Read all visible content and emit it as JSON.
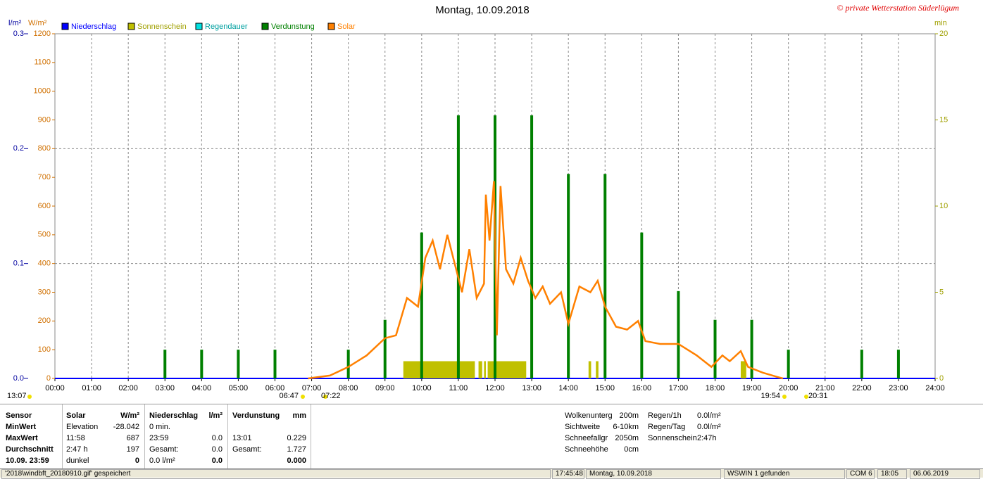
{
  "chart_data": {
    "type": "line",
    "title": "Montag, 10.09.2018",
    "copyright": "© private Wetterstation Süderlügum",
    "axis_labels": {
      "y": "l/m²",
      "y2": "W/m²",
      "y3": "min"
    },
    "xlim": [
      0,
      24
    ],
    "xticks": [
      {
        "value": 0,
        "label": "00:00"
      },
      {
        "value": 1,
        "label": "01:00"
      },
      {
        "value": 2,
        "label": "02:00"
      },
      {
        "value": 3,
        "label": "03:00"
      },
      {
        "value": 4,
        "label": "04:00"
      },
      {
        "value": 5,
        "label": "05:00"
      },
      {
        "value": 6,
        "label": "06:00"
      },
      {
        "value": 7,
        "label": "07:00"
      },
      {
        "value": 8,
        "label": "08:00"
      },
      {
        "value": 9,
        "label": "09:00"
      },
      {
        "value": 10,
        "label": "10:00"
      },
      {
        "value": 11,
        "label": "11:00"
      },
      {
        "value": 12,
        "label": "12:00"
      },
      {
        "value": 13,
        "label": "13:00"
      },
      {
        "value": 14,
        "label": "14:00"
      },
      {
        "value": 15,
        "label": "15:00"
      },
      {
        "value": 16,
        "label": "16:00"
      },
      {
        "value": 17,
        "label": "17:00"
      },
      {
        "value": 18,
        "label": "18:00"
      },
      {
        "value": 19,
        "label": "19:00"
      },
      {
        "value": 20,
        "label": "20:00"
      },
      {
        "value": 21,
        "label": "21:00"
      },
      {
        "value": 22,
        "label": "22:00"
      },
      {
        "value": 23,
        "label": "23:00"
      },
      {
        "value": 24,
        "label": "24:00"
      }
    ],
    "ylim": [
      0,
      0.3
    ],
    "yticks": [
      {
        "value": 0,
        "label": "0.0"
      },
      0.1,
      0.2,
      0.3
    ],
    "y2lim": [
      0,
      1200
    ],
    "y2ticks": [
      0,
      100,
      200,
      300,
      400,
      500,
      600,
      700,
      800,
      900,
      1000,
      1100,
      1200
    ],
    "y3lim": [
      0,
      20
    ],
    "y3ticks": [
      0,
      5,
      10,
      15,
      20
    ],
    "grid": true,
    "series": [
      {
        "name": "Niederschlag",
        "color": "#0000ff",
        "axis": "y",
        "x": [
          0,
          24
        ],
        "values": [
          0,
          0
        ]
      },
      {
        "name": "Sonnenschein",
        "color": "#c0c000",
        "axis": "y3",
        "x_ranges": [
          [
            9.5,
            11.45
          ],
          [
            11.55,
            11.65
          ],
          [
            11.7,
            11.75
          ],
          [
            11.8,
            12.85
          ],
          [
            14.55,
            14.62
          ],
          [
            14.75,
            14.82
          ],
          [
            18.7,
            18.85
          ]
        ],
        "values": [
          1,
          1,
          1,
          1,
          1,
          1,
          1
        ]
      },
      {
        "name": "Regendauer",
        "color": "#00e0e0",
        "axis": "y3"
      },
      {
        "name": "Verdunstung",
        "color": "#008000",
        "axis": "y",
        "x": [
          3,
          4,
          5,
          6,
          8,
          9,
          10,
          11,
          12,
          13,
          14,
          15,
          16,
          17,
          18,
          19,
          20,
          22,
          23
        ],
        "values": [
          0.025,
          0.025,
          0.025,
          0.025,
          0.025,
          0.051,
          0.127,
          0.229,
          0.229,
          0.229,
          0.178,
          0.178,
          0.127,
          0.076,
          0.051,
          0.051,
          0.025,
          0.025,
          0.025
        ]
      },
      {
        "name": "Solar",
        "color": "#ff8000",
        "axis": "y2",
        "x": [
          6.9,
          7.5,
          8,
          8.5,
          9,
          9.3,
          9.6,
          9.9,
          10.1,
          10.3,
          10.5,
          10.7,
          10.9,
          11.1,
          11.3,
          11.5,
          11.7,
          11.75,
          11.85,
          11.97,
          12.05,
          12.15,
          12.3,
          12.5,
          12.7,
          12.9,
          13.1,
          13.3,
          13.5,
          13.8,
          14,
          14.3,
          14.6,
          14.8,
          15,
          15.3,
          15.6,
          15.9,
          16.1,
          16.5,
          17,
          17.5,
          17.9,
          18.2,
          18.4,
          18.7,
          18.9,
          19.3,
          19.7,
          19.85
        ],
        "values": [
          0,
          10,
          40,
          80,
          140,
          150,
          280,
          250,
          420,
          480,
          380,
          500,
          400,
          300,
          450,
          280,
          330,
          640,
          480,
          687,
          150,
          670,
          380,
          330,
          420,
          340,
          280,
          320,
          260,
          300,
          190,
          320,
          300,
          340,
          250,
          180,
          170,
          200,
          130,
          120,
          120,
          80,
          40,
          80,
          60,
          95,
          40,
          20,
          5,
          0
        ]
      }
    ],
    "annotations": [
      "13:07",
      "06:47",
      "07:22",
      "19:54",
      "20:31"
    ]
  },
  "stats": {
    "rows": [
      [
        "Sensor",
        "Solar",
        "W/m²",
        "Niederschlag",
        "l/m²",
        "Verdunstung",
        "mm"
      ],
      [
        "MinWert",
        "Elevation",
        "-28.042",
        "0 min.",
        null,
        null,
        null
      ],
      [
        "MaxWert",
        "11:58",
        "687",
        "23:59",
        "0.0",
        "13:01",
        "0.229"
      ],
      [
        "Durchschnitt",
        "2:47 h",
        "197",
        "Gesamt:",
        "0.0",
        "Gesamt:",
        "1.727"
      ],
      [
        "10.09. 23:59",
        "dunkel",
        "0",
        "0.0 l/m²",
        "0.0",
        null,
        "0.000"
      ]
    ],
    "info": [
      [
        "Wolkenunterg",
        "200m"
      ],
      [
        "Sichtweite",
        "6-10km"
      ],
      [
        "Schneefallgr",
        "2050m"
      ],
      [
        "Schneehöhe",
        "0cm"
      ]
    ],
    "rain": [
      [
        "Regen/1h",
        "0.0l/m²"
      ],
      [
        "Regen/Tag",
        "0.0l/m²"
      ],
      [
        "Sonnenschein",
        "2:47h"
      ]
    ]
  },
  "status_bar": [
    "'2018\\windbft_20180910.gif' gespeichert",
    "17:45:48",
    "Montag, 10.09.2018",
    "WSWIN 1 gefunden",
    "COM 6",
    "18:05",
    "06.06.2019"
  ]
}
